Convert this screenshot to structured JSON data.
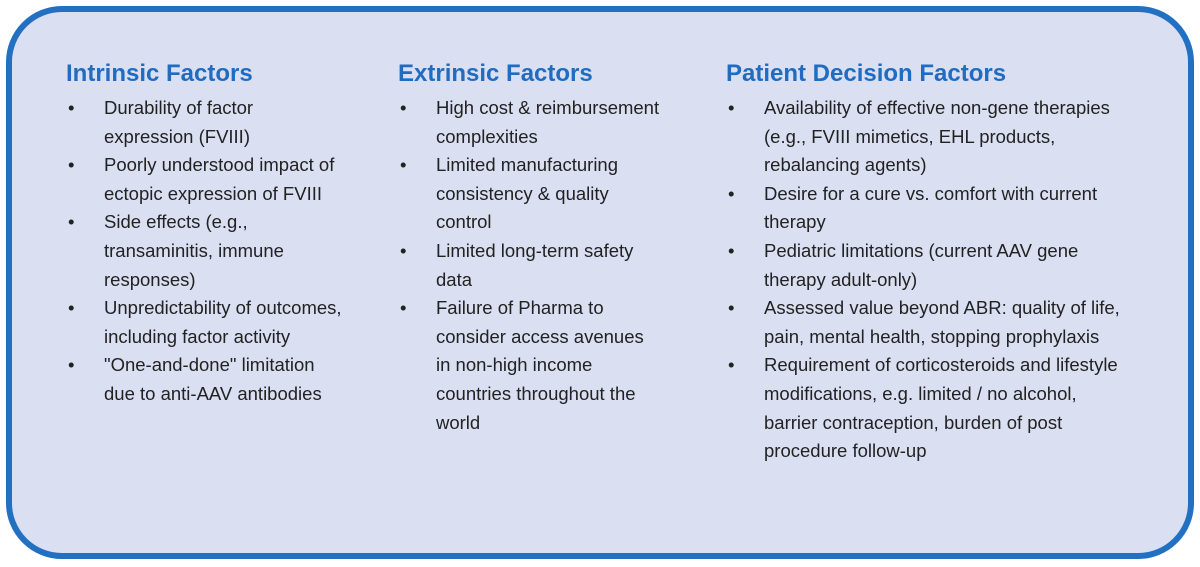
{
  "columns": [
    {
      "title": "Intrinsic Factors",
      "items": [
        "Durability of factor expression (FVIII)",
        "Poorly understood impact of ectopic expression of FVIII",
        "Side effects (e.g., transaminitis, immune responses)",
        "Unpredictability of outcomes, including factor activity",
        "\"One-and-done\" limitation due to anti-AAV antibodies"
      ]
    },
    {
      "title": "Extrinsic Factors",
      "items": [
        "High cost & reimbursement complexities",
        "Limited manufacturing consistency & quality control",
        "Limited long-term safety data",
        "Failure of Pharma to consider access avenues in non-high income countries throughout the world"
      ]
    },
    {
      "title": "Patient Decision Factors",
      "items": [
        "Availability of effective non-gene therapies (e.g., FVIII mimetics, EHL products, rebalancing agents)",
        "Desire for a cure vs. comfort with current therapy",
        "Pediatric limitations (current AAV gene therapy adult-only)",
        "Assessed value beyond ABR: quality of life, pain, mental health, stopping prophylaxis",
        "Requirement of corticosteroids and lifestyle modifications, e.g. limited / no alcohol, barrier contraception, burden of post procedure follow-up"
      ]
    }
  ]
}
